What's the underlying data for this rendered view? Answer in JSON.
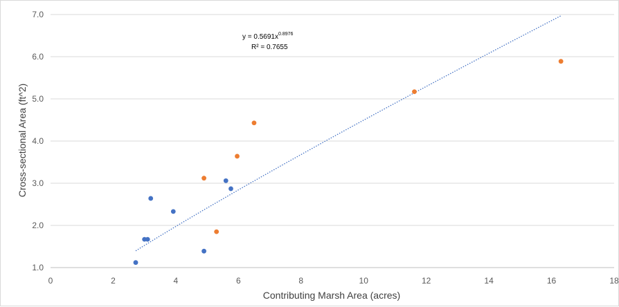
{
  "chart_data": {
    "type": "scatter",
    "title": "",
    "xlabel": "Contributing Marsh Area (acres)",
    "ylabel": "Cross-sectional Area (ft^2)",
    "xlim": [
      0,
      18
    ],
    "ylim": [
      1.0,
      7.0
    ],
    "x_ticks": [
      "0",
      "2",
      "4",
      "6",
      "8",
      "10",
      "12",
      "14",
      "16",
      "18"
    ],
    "y_ticks": [
      "1.0",
      "2.0",
      "3.0",
      "4.0",
      "5.0",
      "6.0",
      "7.0"
    ],
    "grid": "horizontal",
    "legend": "none",
    "series": [
      {
        "color": "#4472c4",
        "points": [
          {
            "x": 2.72,
            "y": 1.12
          },
          {
            "x": 3.0,
            "y": 1.67
          },
          {
            "x": 3.1,
            "y": 1.67
          },
          {
            "x": 3.2,
            "y": 2.64
          },
          {
            "x": 3.92,
            "y": 2.33
          },
          {
            "x": 4.9,
            "y": 1.39
          },
          {
            "x": 5.6,
            "y": 3.06
          },
          {
            "x": 5.76,
            "y": 2.87
          }
        ]
      },
      {
        "color": "#ed7d31",
        "points": [
          {
            "x": 4.9,
            "y": 3.12
          },
          {
            "x": 5.3,
            "y": 1.85
          },
          {
            "x": 5.96,
            "y": 3.64
          },
          {
            "x": 6.5,
            "y": 4.43
          },
          {
            "x": 11.62,
            "y": 5.17
          },
          {
            "x": 16.3,
            "y": 5.89
          }
        ]
      }
    ],
    "trendline": {
      "type": "power",
      "coefficient": 0.5691,
      "exponent": 0.8976,
      "x_range": [
        2.72,
        16.3
      ],
      "color": "#4472c4",
      "style": "dotted",
      "equation_prefix": "y = 0.5691x",
      "equation_exponent": "0.8976",
      "r_squared_label": "R² = 0.7655"
    }
  }
}
